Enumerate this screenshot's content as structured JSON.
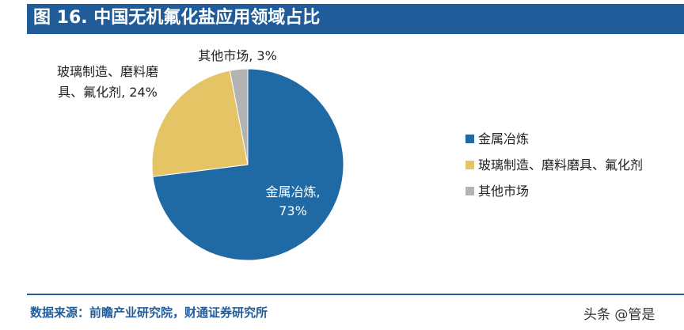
{
  "header": {
    "title": "图 16. 中国无机氟化盐应用领域占比"
  },
  "chart_data": {
    "type": "pie",
    "title": "图 16. 中国无机氟化盐应用领域占比",
    "slices": [
      {
        "label": "金属冶炼",
        "value": 73,
        "color": "#1f6aa5",
        "text_lines": [
          "金属冶炼,",
          "73%"
        ],
        "text_color": "#ffffff"
      },
      {
        "label": "玻璃制造、磨料磨具、氟化剂",
        "value": 24,
        "color": "#e5c465",
        "text_lines": [
          "玻璃制造、磨料磨",
          "具、氟化剂, 24%"
        ],
        "text_color": "#222222"
      },
      {
        "label": "其他市场",
        "value": 3,
        "color": "#b3b3b3",
        "text_lines": [
          "其他市场, 3%"
        ],
        "text_color": "#222222"
      }
    ],
    "legend": {
      "position": "right",
      "entries": [
        "金属冶炼",
        "玻璃制造、磨料磨具、氟化剂",
        "其他市场"
      ]
    }
  },
  "footer": {
    "source": "数据来源：前瞻产业研究院，财通证券研究所",
    "watermark": "头条 @管是"
  }
}
